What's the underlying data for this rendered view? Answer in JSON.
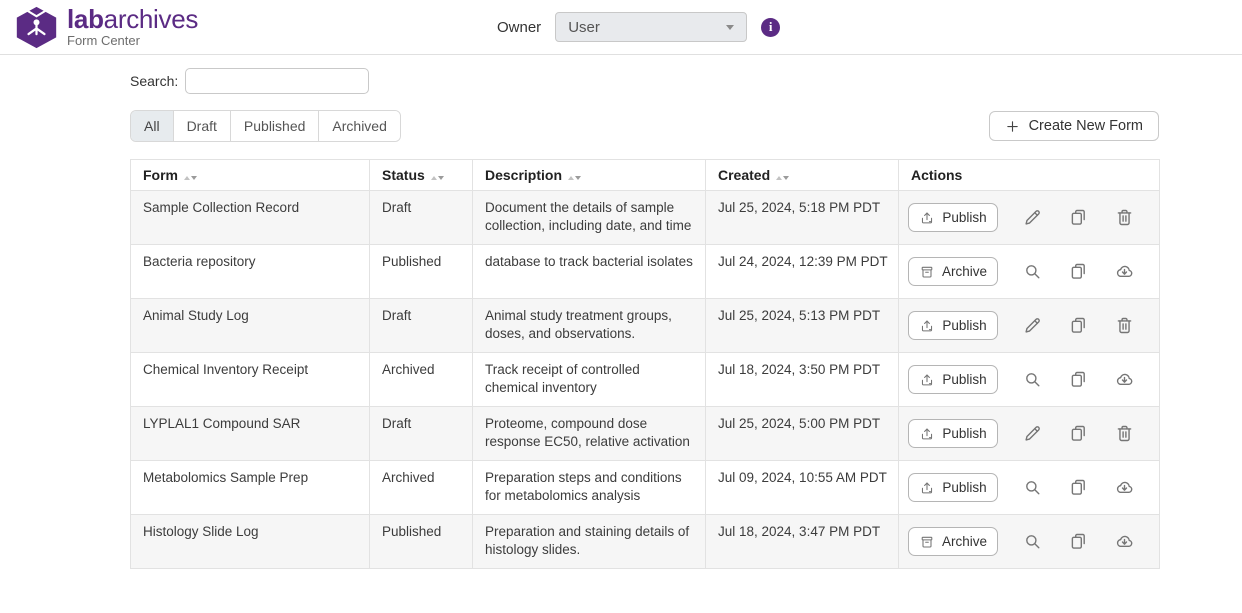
{
  "header": {
    "brand_bold": "lab",
    "brand_rest": "archives",
    "subtitle": "Form Center",
    "owner_label": "Owner",
    "owner_value": "User",
    "info_glyph": "i"
  },
  "colors": {
    "brand_purple": "#5b2b84",
    "row_stripe": "#f6f6f6",
    "active_tab_bg": "#e7ebee"
  },
  "search": {
    "label": "Search:",
    "value": ""
  },
  "filters": [
    {
      "label": "All",
      "active": true
    },
    {
      "label": "Draft",
      "active": false
    },
    {
      "label": "Published",
      "active": false
    },
    {
      "label": "Archived",
      "active": false
    }
  ],
  "create_button": {
    "label": "Create New Form",
    "icon": "plus"
  },
  "table": {
    "columns": [
      {
        "label": "Form",
        "sortable": true
      },
      {
        "label": "Status",
        "sortable": true
      },
      {
        "label": "Description",
        "sortable": true
      },
      {
        "label": "Created",
        "sortable": true
      },
      {
        "label": "Actions",
        "sortable": false
      }
    ],
    "rows": [
      {
        "form": "Sample Collection Record",
        "status": "Draft",
        "description": "Document the details of sample collection, including date, and time",
        "created": "Jul 25, 2024, 5:18 PM PDT",
        "actions": {
          "button_label": "Publish",
          "button_icon": "upload",
          "icons": [
            "edit",
            "copy",
            "delete"
          ]
        }
      },
      {
        "form": "Bacteria repository",
        "status": "Published",
        "description": "database to track bacterial isolates",
        "created": "Jul 24, 2024, 12:39 PM PDT",
        "actions": {
          "button_label": "Archive",
          "button_icon": "archive",
          "icons": [
            "preview",
            "copy",
            "download"
          ]
        }
      },
      {
        "form": "Animal Study Log",
        "status": "Draft",
        "description": "Animal study treatment groups, doses, and observations.",
        "created": "Jul 25, 2024, 5:13 PM PDT",
        "actions": {
          "button_label": "Publish",
          "button_icon": "upload",
          "icons": [
            "edit",
            "copy",
            "delete"
          ]
        }
      },
      {
        "form": "Chemical Inventory Receipt",
        "status": "Archived",
        "description": "Track receipt of controlled chemical inventory",
        "created": "Jul 18, 2024, 3:50 PM PDT",
        "actions": {
          "button_label": "Publish",
          "button_icon": "upload",
          "icons": [
            "preview",
            "copy",
            "download"
          ]
        }
      },
      {
        "form": "LYPLAL1 Compound SAR",
        "status": "Draft",
        "description": "Proteome, compound dose response EC50, relative activation",
        "created": "Jul 25, 2024, 5:00 PM PDT",
        "actions": {
          "button_label": "Publish",
          "button_icon": "upload",
          "icons": [
            "edit",
            "copy",
            "delete"
          ]
        }
      },
      {
        "form": "Metabolomics Sample Prep",
        "status": "Archived",
        "description": "Preparation steps and conditions for metabolomics analysis",
        "created": "Jul 09, 2024, 10:55 AM PDT",
        "actions": {
          "button_label": "Publish",
          "button_icon": "upload",
          "icons": [
            "preview",
            "copy",
            "download"
          ]
        }
      },
      {
        "form": "Histology Slide Log",
        "status": "Published",
        "description": "Preparation and staining details of histology slides.",
        "created": "Jul 18, 2024, 3:47 PM PDT",
        "actions": {
          "button_label": "Archive",
          "button_icon": "archive",
          "icons": [
            "preview",
            "copy",
            "download"
          ]
        }
      }
    ]
  }
}
